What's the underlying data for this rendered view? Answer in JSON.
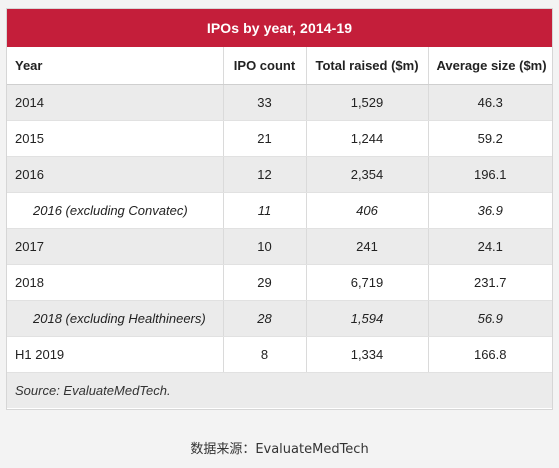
{
  "table": {
    "title": "IPOs by year, 2014-19",
    "headers": {
      "year": "Year",
      "ipo_count": "IPO count",
      "total_raised": "Total raised ($m)",
      "average_size": "Average size ($m)"
    },
    "rows": [
      {
        "year": "2014",
        "ipo_count": "33",
        "total_raised": "1,529",
        "average_size": "46.3"
      },
      {
        "year": "2015",
        "ipo_count": "21",
        "total_raised": "1,244",
        "average_size": "59.2"
      },
      {
        "year": "2016",
        "ipo_count": "12",
        "total_raised": "2,354",
        "average_size": "196.1"
      },
      {
        "year": "2016 (excluding Convatec)",
        "ipo_count": "11",
        "total_raised": "406",
        "average_size": "36.9"
      },
      {
        "year": "2017",
        "ipo_count": "10",
        "total_raised": "241",
        "average_size": "24.1"
      },
      {
        "year": "2018",
        "ipo_count": "29",
        "total_raised": "6,719",
        "average_size": "231.7"
      },
      {
        "year": "2018 (excluding Healthineers)",
        "ipo_count": "28",
        "total_raised": "1,594",
        "average_size": "56.9"
      },
      {
        "year": "H1 2019",
        "ipo_count": "8",
        "total_raised": "1,334",
        "average_size": "166.8"
      }
    ],
    "source": "Source: EvaluateMedTech."
  },
  "caption": "数据来源：EvaluateMedTech",
  "colors": {
    "title_bar": "#c41e3a",
    "stripe": "#ebebeb",
    "page_background": "#f3f3f3"
  }
}
